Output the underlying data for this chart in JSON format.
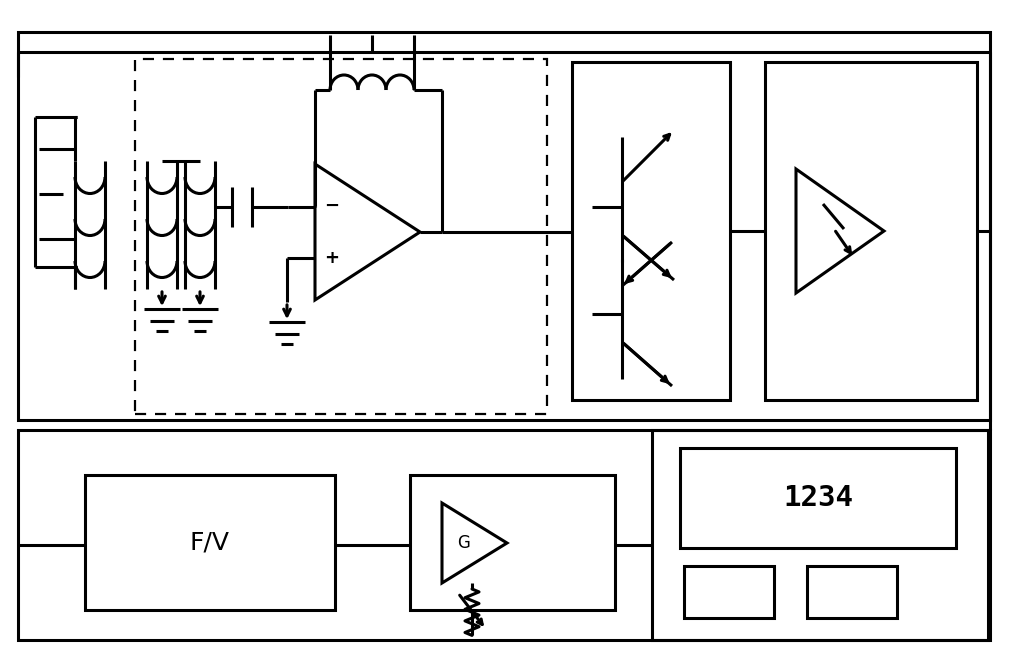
{
  "bg": "#ffffff",
  "lc": "#000000",
  "lw": 2.2,
  "dlw": 1.6,
  "fw": 10.13,
  "fh": 6.62
}
